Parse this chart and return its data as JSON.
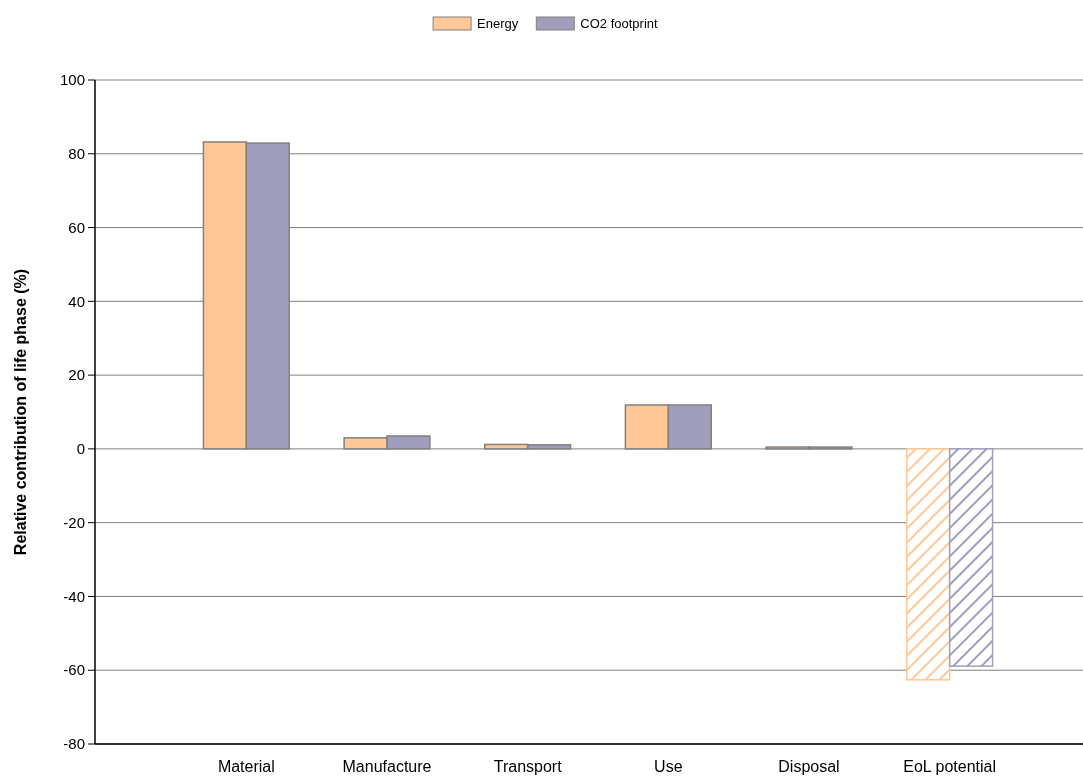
{
  "chart_data": {
    "type": "bar",
    "ylabel": "Relative contribution of life phase (%)",
    "categories": [
      "Material",
      "Manufacture",
      "Transport",
      "Use",
      "Disposal",
      "EoL potential"
    ],
    "series": [
      {
        "name": "Energy",
        "color": "#ffc896",
        "values": [
          83.2,
          3.0,
          1.2,
          11.9,
          0.5,
          -62.6
        ]
      },
      {
        "name": "CO2 footprint",
        "color": "#a09ebc",
        "values": [
          82.9,
          3.5,
          1.1,
          11.9,
          0.5,
          -58.9
        ]
      }
    ],
    "ylim": [
      -80,
      100
    ],
    "yticks": [
      -80,
      -60,
      -40,
      -20,
      0,
      20,
      40,
      60,
      80,
      100
    ],
    "grid": "y",
    "legend": "top"
  }
}
